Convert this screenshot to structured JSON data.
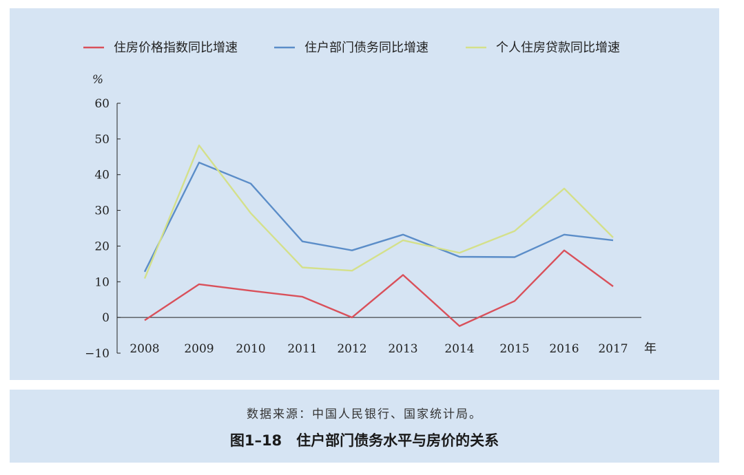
{
  "chart_data": {
    "type": "line",
    "categories": [
      "2008",
      "2009",
      "2010",
      "2011",
      "2012",
      "2013",
      "2014",
      "2015",
      "2016",
      "2017"
    ],
    "series": [
      {
        "name": "住房价格指数同比增速",
        "color": "#d9505a",
        "values": [
          -0.8,
          9.3,
          7.5,
          5.8,
          0.0,
          11.9,
          -2.4,
          4.6,
          18.8,
          8.7
        ]
      },
      {
        "name": "住户部门债务同比增速",
        "color": "#5b8dc8",
        "values": [
          12.8,
          43.4,
          37.5,
          21.3,
          18.8,
          23.2,
          17.0,
          16.9,
          23.2,
          21.6
        ]
      },
      {
        "name": "个人住房贷款同比增速",
        "color": "#d4e08a",
        "values": [
          10.9,
          48.2,
          29.2,
          14.0,
          13.1,
          21.6,
          18.1,
          24.2,
          36.1,
          22.4
        ]
      }
    ],
    "y_unit": "%",
    "x_unit": "年",
    "ylim": [
      -10,
      60
    ],
    "yticks": [
      60,
      50,
      40,
      30,
      20,
      10,
      0,
      -10
    ],
    "legend_position": "top",
    "grid": false
  },
  "caption": {
    "source": "数据来源：中国人民银行、国家统计局。",
    "title": "图1–18　住户部门债务水平与房价的关系"
  }
}
